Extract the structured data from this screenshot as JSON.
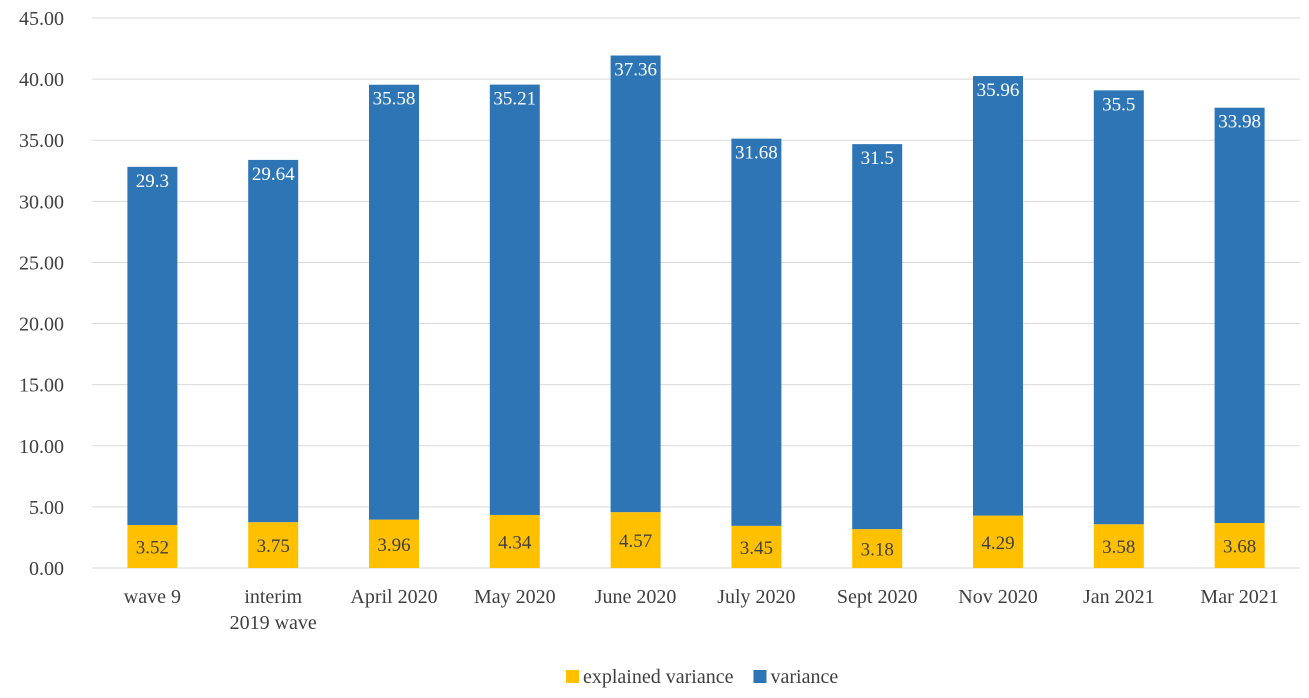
{
  "chart_data": {
    "type": "bar",
    "stacked": true,
    "categories": [
      [
        "wave 9"
      ],
      [
        "interim",
        "2019 wave"
      ],
      [
        "April 2020"
      ],
      [
        "May  2020"
      ],
      [
        "June 2020"
      ],
      [
        "July 2020"
      ],
      [
        "Sept 2020"
      ],
      [
        "Nov 2020"
      ],
      [
        "Jan 2021"
      ],
      [
        "Mar 2021"
      ]
    ],
    "series": [
      {
        "name": "explained variance",
        "color": "#ffc000",
        "label_color": "#404040",
        "values": [
          3.52,
          3.75,
          3.96,
          4.34,
          4.57,
          3.45,
          3.18,
          4.29,
          3.58,
          3.68
        ],
        "labels": [
          "3.52",
          "3.75",
          "3.96",
          "4.34",
          "4.57",
          "3.45",
          "3.18",
          "4.29",
          "3.58",
          "3.68"
        ]
      },
      {
        "name": "variance",
        "color": "#2e75b6",
        "label_color": "#ffffff",
        "values": [
          29.3,
          29.64,
          35.58,
          35.21,
          37.36,
          31.68,
          31.5,
          35.96,
          35.5,
          33.98
        ],
        "labels": [
          "29.3",
          "29.64",
          "35.58",
          "35.21",
          "37.36",
          "31.68",
          "31.5",
          "35.96",
          "35.5",
          "33.98"
        ]
      }
    ],
    "ylim": [
      0,
      45
    ],
    "yticks": [
      "0.00",
      "5.00",
      "10.00",
      "15.00",
      "20.00",
      "25.00",
      "30.00",
      "35.00",
      "40.00",
      "45.00"
    ],
    "grid": true,
    "legend": "bottom-center"
  }
}
